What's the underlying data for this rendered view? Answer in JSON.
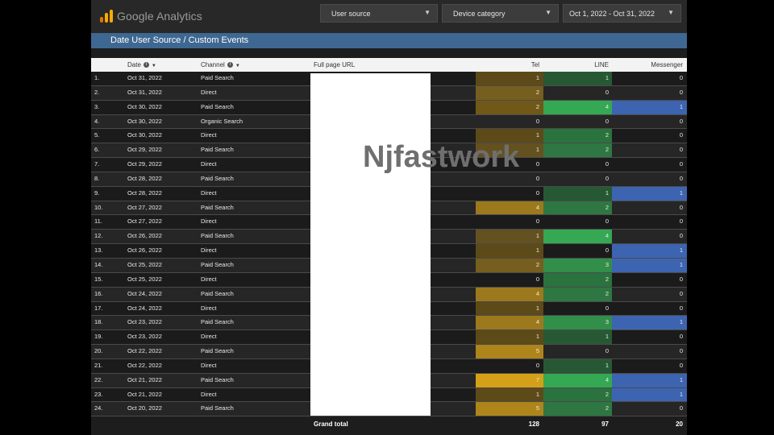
{
  "header": {
    "brand": "Google Analytics",
    "filters": [
      {
        "label": "User source"
      },
      {
        "label": "Device category"
      },
      {
        "label": "Oct 1, 2022 - Oct 31, 2022"
      }
    ]
  },
  "report": {
    "title": "Date User Source / Custom Events",
    "watermark": "Njfastwork"
  },
  "table": {
    "columns": {
      "date": "Date",
      "channel": "Channel",
      "url": "Full page URL",
      "tel": "Tel",
      "line": "LINE",
      "messenger": "Messenger"
    },
    "rows": [
      {
        "num": "1.",
        "date": "Oct 31, 2022",
        "channel": "Paid Search",
        "tel": "1",
        "line": "1",
        "messenger": "0"
      },
      {
        "num": "2.",
        "date": "Oct 31, 2022",
        "channel": "Direct",
        "tel": "2",
        "line": "0",
        "messenger": "0"
      },
      {
        "num": "3.",
        "date": "Oct 30, 2022",
        "channel": "Paid Search",
        "tel": "2",
        "line": "4",
        "messenger": "1"
      },
      {
        "num": "4.",
        "date": "Oct 30, 2022",
        "channel": "Organic Search",
        "tel": "0",
        "line": "0",
        "messenger": "0"
      },
      {
        "num": "5.",
        "date": "Oct 30, 2022",
        "channel": "Direct",
        "tel": "1",
        "line": "2",
        "messenger": "0"
      },
      {
        "num": "6.",
        "date": "Oct 29, 2022",
        "channel": "Paid Search",
        "tel": "1",
        "line": "2",
        "messenger": "0"
      },
      {
        "num": "7.",
        "date": "Oct 29, 2022",
        "channel": "Direct",
        "tel": "0",
        "line": "0",
        "messenger": "0"
      },
      {
        "num": "8.",
        "date": "Oct 28, 2022",
        "channel": "Paid Search",
        "tel": "0",
        "line": "0",
        "messenger": "0"
      },
      {
        "num": "9.",
        "date": "Oct 28, 2022",
        "channel": "Direct",
        "tel": "0",
        "line": "1",
        "messenger": "1"
      },
      {
        "num": "10.",
        "date": "Oct 27, 2022",
        "channel": "Paid Search",
        "tel": "4",
        "line": "2",
        "messenger": "0"
      },
      {
        "num": "11.",
        "date": "Oct 27, 2022",
        "channel": "Direct",
        "tel": "0",
        "line": "0",
        "messenger": "0"
      },
      {
        "num": "12.",
        "date": "Oct 26, 2022",
        "channel": "Paid Search",
        "tel": "1",
        "line": "4",
        "messenger": "0"
      },
      {
        "num": "13.",
        "date": "Oct 26, 2022",
        "channel": "Direct",
        "tel": "1",
        "line": "0",
        "messenger": "1"
      },
      {
        "num": "14.",
        "date": "Oct 25, 2022",
        "channel": "Paid Search",
        "tel": "2",
        "line": "3",
        "messenger": "1"
      },
      {
        "num": "15.",
        "date": "Oct 25, 2022",
        "channel": "Direct",
        "tel": "0",
        "line": "2",
        "messenger": "0"
      },
      {
        "num": "16.",
        "date": "Oct 24, 2022",
        "channel": "Paid Search",
        "tel": "4",
        "line": "2",
        "messenger": "0"
      },
      {
        "num": "17.",
        "date": "Oct 24, 2022",
        "channel": "Direct",
        "tel": "1",
        "line": "0",
        "messenger": "0"
      },
      {
        "num": "18.",
        "date": "Oct 23, 2022",
        "channel": "Paid Search",
        "tel": "4",
        "line": "3",
        "messenger": "1"
      },
      {
        "num": "19.",
        "date": "Oct 23, 2022",
        "channel": "Direct",
        "tel": "1",
        "line": "1",
        "messenger": "0"
      },
      {
        "num": "20.",
        "date": "Oct 22, 2022",
        "channel": "Paid Search",
        "tel": "5",
        "line": "0",
        "messenger": "0"
      },
      {
        "num": "21.",
        "date": "Oct 22, 2022",
        "channel": "Direct",
        "tel": "0",
        "line": "1",
        "messenger": "0"
      },
      {
        "num": "22.",
        "date": "Oct 21, 2022",
        "channel": "Paid Search",
        "tel": "7",
        "line": "4",
        "messenger": "1"
      },
      {
        "num": "23.",
        "date": "Oct 21, 2022",
        "channel": "Direct",
        "tel": "1",
        "line": "2",
        "messenger": "1"
      },
      {
        "num": "24.",
        "date": "Oct 20, 2022",
        "channel": "Paid Search",
        "tel": "5",
        "line": "2",
        "messenger": "0"
      }
    ],
    "totals": {
      "label": "Grand total",
      "tel": "128",
      "line": "97",
      "messenger": "20"
    }
  },
  "colors": {
    "tel": "#d4a017",
    "line": "#34a853",
    "messenger": "#3d64b0",
    "title_bar": "#3e6891"
  }
}
